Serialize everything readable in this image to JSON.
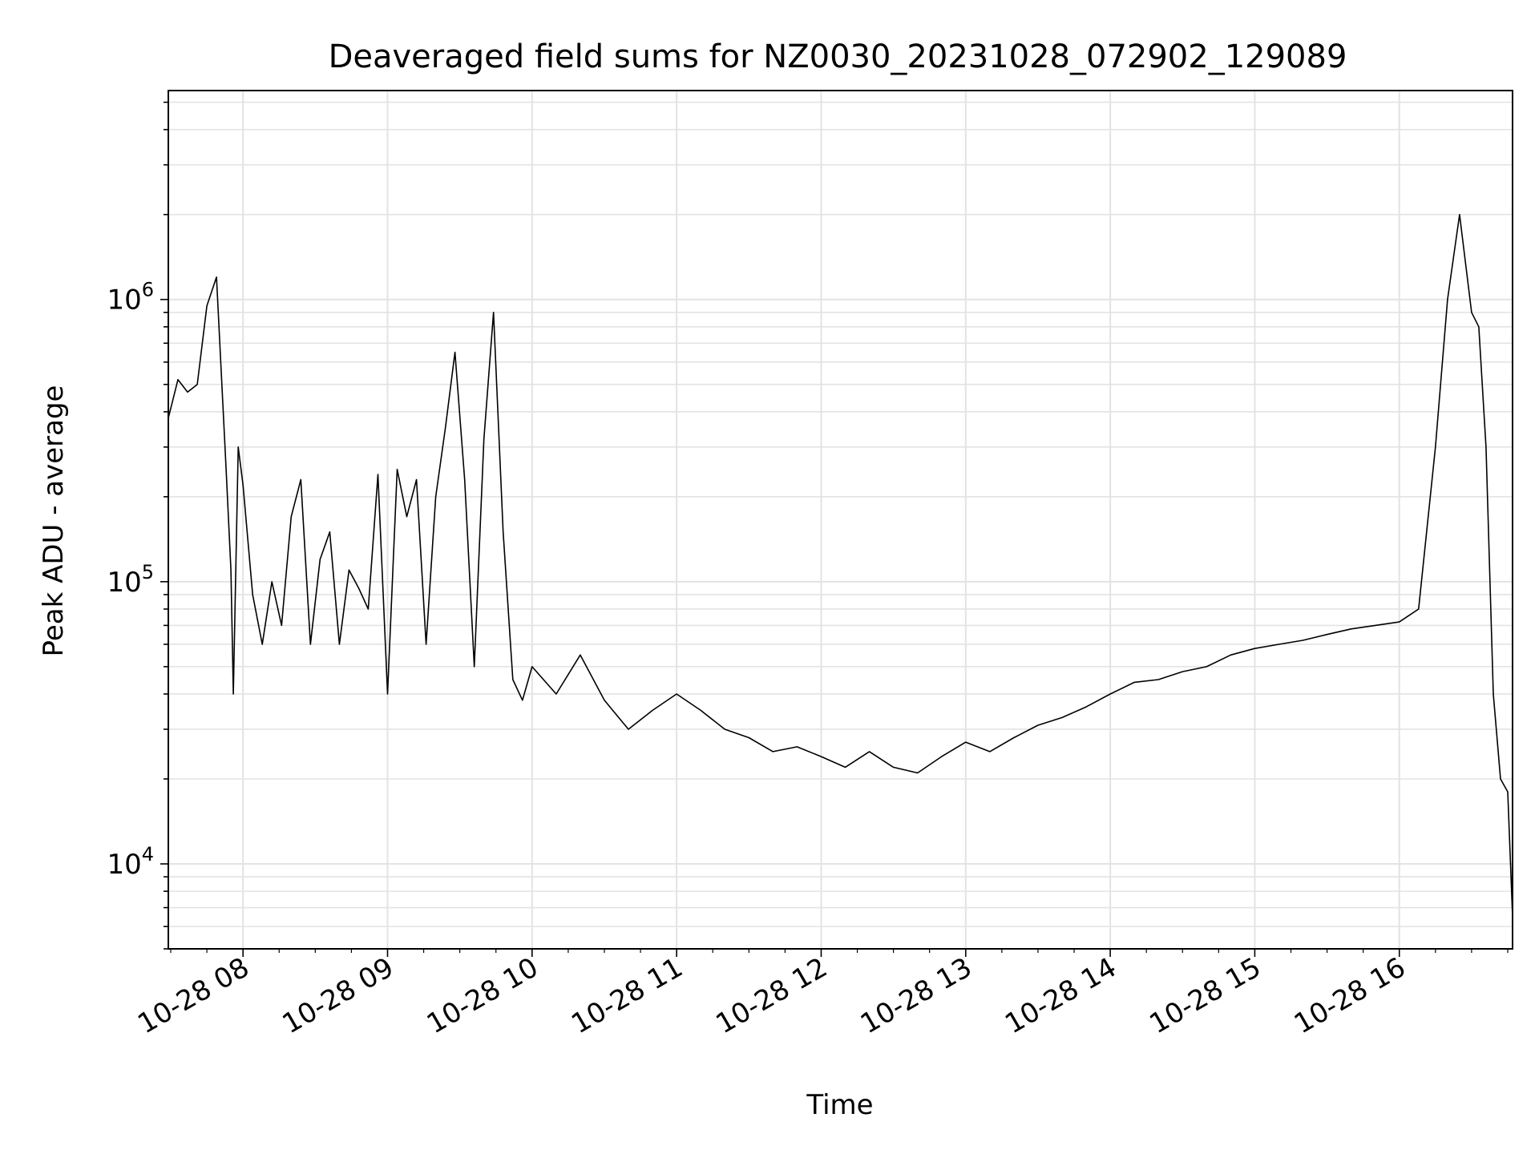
{
  "chart_data": {
    "type": "line",
    "title": "Deaveraged field sums for NZ0030_20231028_072902_129089",
    "xlabel": "Time",
    "ylabel": "Peak ADU - average",
    "xlim": [
      "2023-10-28 07:29",
      "2023-10-28 16:47"
    ],
    "ylim": [
      5000,
      5500000
    ],
    "yscale": "log",
    "grid": true,
    "x_ticks": [
      "10-28 08",
      "10-28 09",
      "10-28 10",
      "10-28 11",
      "10-28 12",
      "10-28 13",
      "10-28 14",
      "10-28 15",
      "10-28 16"
    ],
    "y_ticks": [
      {
        "value": 10000,
        "base": "10",
        "exp": "4"
      },
      {
        "value": 100000,
        "base": "10",
        "exp": "5"
      },
      {
        "value": 1000000,
        "base": "10",
        "exp": "6"
      }
    ],
    "line_color": "#000000",
    "series": [
      {
        "x": [
          "07:29",
          "07:33",
          "07:37",
          "07:41",
          "07:45",
          "07:49",
          "07:53",
          "07:55",
          "07:56",
          "07:58",
          "08:00",
          "08:04",
          "08:08",
          "08:12",
          "08:16",
          "08:20",
          "08:24",
          "08:28",
          "08:32",
          "08:36",
          "08:40",
          "08:44",
          "08:48",
          "08:52",
          "08:56",
          "09:00",
          "09:04",
          "09:08",
          "09:12",
          "09:16",
          "09:20",
          "09:24",
          "09:28",
          "09:32",
          "09:36",
          "09:40",
          "09:44",
          "09:48",
          "09:52",
          "09:56",
          "10:00",
          "10:10",
          "10:20",
          "10:30",
          "10:40",
          "10:50",
          "11:00",
          "11:10",
          "11:20",
          "11:30",
          "11:40",
          "11:50",
          "12:00",
          "12:10",
          "12:20",
          "12:30",
          "12:40",
          "12:50",
          "13:00",
          "13:10",
          "13:20",
          "13:30",
          "13:40",
          "13:50",
          "14:00",
          "14:10",
          "14:20",
          "14:30",
          "14:40",
          "14:50",
          "15:00",
          "15:10",
          "15:20",
          "15:30",
          "15:40",
          "15:50",
          "16:00",
          "16:08",
          "16:15",
          "16:20",
          "16:25",
          "16:30",
          "16:33",
          "16:36",
          "16:39",
          "16:42",
          "16:45",
          "16:47"
        ],
        "y": [
          380000,
          520000,
          470000,
          500000,
          950000,
          1200000,
          250000,
          110000,
          40000,
          300000,
          220000,
          90000,
          60000,
          100000,
          70000,
          170000,
          230000,
          60000,
          120000,
          150000,
          60000,
          110000,
          95000,
          80000,
          240000,
          40000,
          250000,
          170000,
          230000,
          60000,
          200000,
          350000,
          650000,
          230000,
          50000,
          320000,
          900000,
          150000,
          45000,
          38000,
          50000,
          40000,
          55000,
          38000,
          30000,
          35000,
          40000,
          35000,
          30000,
          28000,
          25000,
          26000,
          24000,
          22000,
          25000,
          22000,
          21000,
          24000,
          27000,
          25000,
          28000,
          31000,
          33000,
          36000,
          40000,
          44000,
          45000,
          48000,
          50000,
          55000,
          58000,
          60000,
          62000,
          65000,
          68000,
          70000,
          72000,
          80000,
          300000,
          1000000,
          2000000,
          900000,
          800000,
          300000,
          40000,
          20000,
          18000,
          6500
        ]
      }
    ]
  }
}
